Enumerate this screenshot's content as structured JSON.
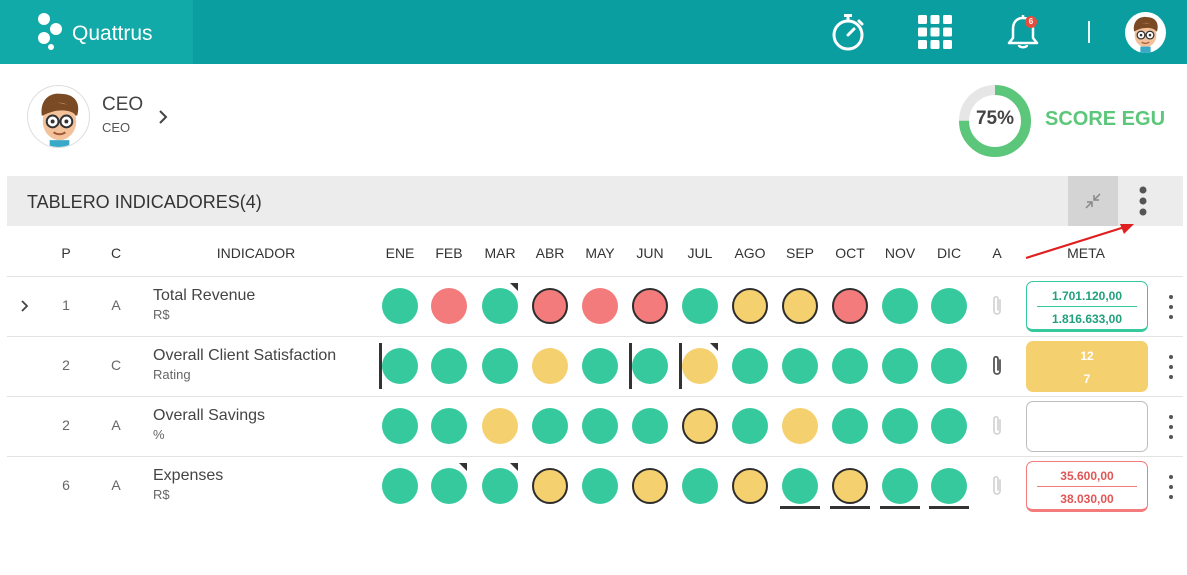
{
  "brand": {
    "name": "Quattrus"
  },
  "header": {
    "notification_count": "6",
    "icons": [
      "stopwatch-icon",
      "apps-grid-icon",
      "bell-icon",
      "avatar"
    ]
  },
  "profile": {
    "name": "CEO",
    "role": "CEO"
  },
  "score": {
    "percent": "75%",
    "value": 0.75,
    "label": "SCORE EGU",
    "color": "#5cc77a"
  },
  "section": {
    "title": "TABLERO INDICADORES(4)"
  },
  "table": {
    "headers": {
      "p": "P",
      "c": "C",
      "indicator": "INDICADOR",
      "a": "A",
      "meta": "META"
    },
    "months": [
      "ENE",
      "FEB",
      "MAR",
      "ABR",
      "MAY",
      "JUN",
      "JUL",
      "AGO",
      "SEP",
      "OCT",
      "NOV",
      "DIC"
    ],
    "rows": [
      {
        "p": "1",
        "c": "A",
        "name": "Total Revenue",
        "unit": "R$",
        "expandable": true,
        "dots": [
          "g",
          "r",
          "g",
          "r",
          "r",
          "r",
          "g",
          "y",
          "y",
          "r",
          "g",
          "g"
        ],
        "bordered": [
          3,
          5,
          7,
          8,
          9
        ],
        "corner": [
          2
        ],
        "left_bar": [],
        "under_bar": [],
        "attachment_active": false,
        "meta": {
          "style": "green",
          "v1": "1.701.120,00",
          "v2": "1.816.633,00"
        }
      },
      {
        "p": "2",
        "c": "C",
        "name": "Overall Client Satisfaction",
        "unit": "Rating",
        "expandable": false,
        "dots": [
          "g",
          "g",
          "g",
          "y",
          "g",
          "g",
          "y",
          "g",
          "g",
          "g",
          "g",
          "g"
        ],
        "bordered": [],
        "corner": [
          6
        ],
        "left_bar": [
          0,
          5,
          6
        ],
        "under_bar": [],
        "attachment_active": true,
        "meta": {
          "style": "yellow",
          "v1": "12",
          "v2": "7"
        }
      },
      {
        "p": "2",
        "c": "A",
        "name": "Overall Savings",
        "unit": "%",
        "expandable": false,
        "dots": [
          "g",
          "g",
          "y",
          "g",
          "g",
          "g",
          "y",
          "g",
          "y",
          "g",
          "g",
          "g"
        ],
        "bordered": [
          6
        ],
        "corner": [],
        "left_bar": [],
        "under_bar": [],
        "attachment_active": false,
        "meta": {
          "style": "empty",
          "v1": "",
          "v2": ""
        }
      },
      {
        "p": "6",
        "c": "A",
        "name": "Expenses",
        "unit": "R$",
        "expandable": false,
        "dots": [
          "g",
          "g",
          "g",
          "y",
          "g",
          "y",
          "g",
          "y",
          "g",
          "y",
          "g",
          "g"
        ],
        "bordered": [
          3,
          5,
          7,
          9
        ],
        "corner": [
          1,
          2
        ],
        "left_bar": [],
        "under_bar": [
          8,
          9,
          10,
          11
        ],
        "attachment_active": false,
        "meta": {
          "style": "red",
          "v1": "35.600,00",
          "v2": "38.030,00"
        }
      }
    ]
  },
  "colors": {
    "topbar": "#0a9ea0",
    "green": "#37c99e",
    "red": "#f37b7b",
    "yellow": "#f4d06f"
  }
}
